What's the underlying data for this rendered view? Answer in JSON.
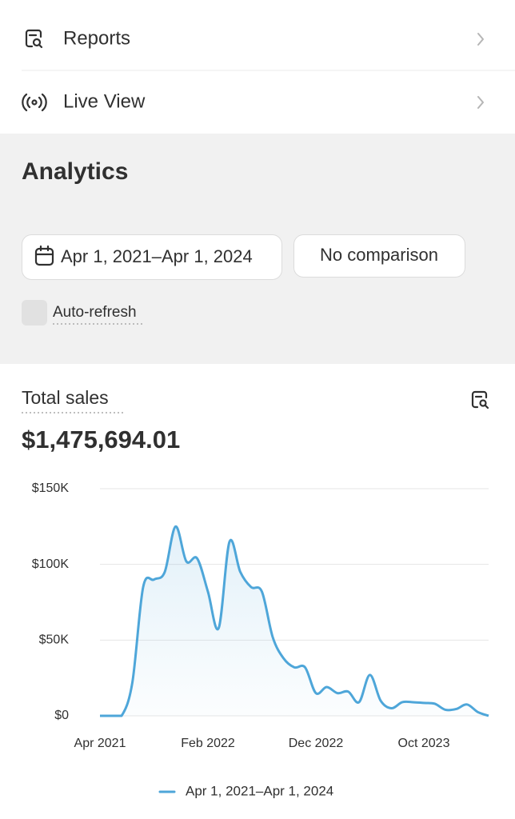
{
  "menu": [
    {
      "label": "Reports"
    },
    {
      "label": "Live View"
    }
  ],
  "analytics": {
    "title": "Analytics",
    "date_range": "Apr 1, 2021–Apr 1, 2024",
    "comparison": "No comparison",
    "auto_refresh": "Auto-refresh"
  },
  "card": {
    "title": "Total sales",
    "total": "$1,475,694.01"
  },
  "chart_data": {
    "type": "line",
    "categories": [
      "Apr 2021",
      null,
      null,
      null,
      null,
      null,
      null,
      null,
      null,
      null,
      "Feb 2022",
      null,
      null,
      null,
      null,
      null,
      null,
      null,
      null,
      null,
      "Dec 2022",
      null,
      null,
      null,
      null,
      null,
      null,
      null,
      null,
      null,
      "Oct 2023",
      null,
      null,
      null,
      null,
      null,
      null
    ],
    "series": [
      {
        "name": "Apr 1, 2021–Apr 1, 2024",
        "color": "#4ea6d9",
        "values": [
          0,
          0,
          0,
          22000,
          85000,
          90000,
          95000,
          125000,
          102000,
          104000,
          82000,
          58000,
          115000,
          95000,
          85000,
          82000,
          52000,
          38000,
          32000,
          32000,
          15000,
          19000,
          15000,
          16000,
          9000,
          27000,
          10000,
          5000,
          9000,
          9000,
          8500,
          8000,
          4000,
          4500,
          7500,
          2500,
          0
        ]
      }
    ],
    "ylim": [
      0,
      150000
    ],
    "yticks": [
      {
        "value": 0,
        "label": "$0"
      },
      {
        "value": 50000,
        "label": "$50K"
      },
      {
        "value": 100000,
        "label": "$100K"
      },
      {
        "value": 150000,
        "label": "$150K"
      }
    ],
    "grid": true
  }
}
